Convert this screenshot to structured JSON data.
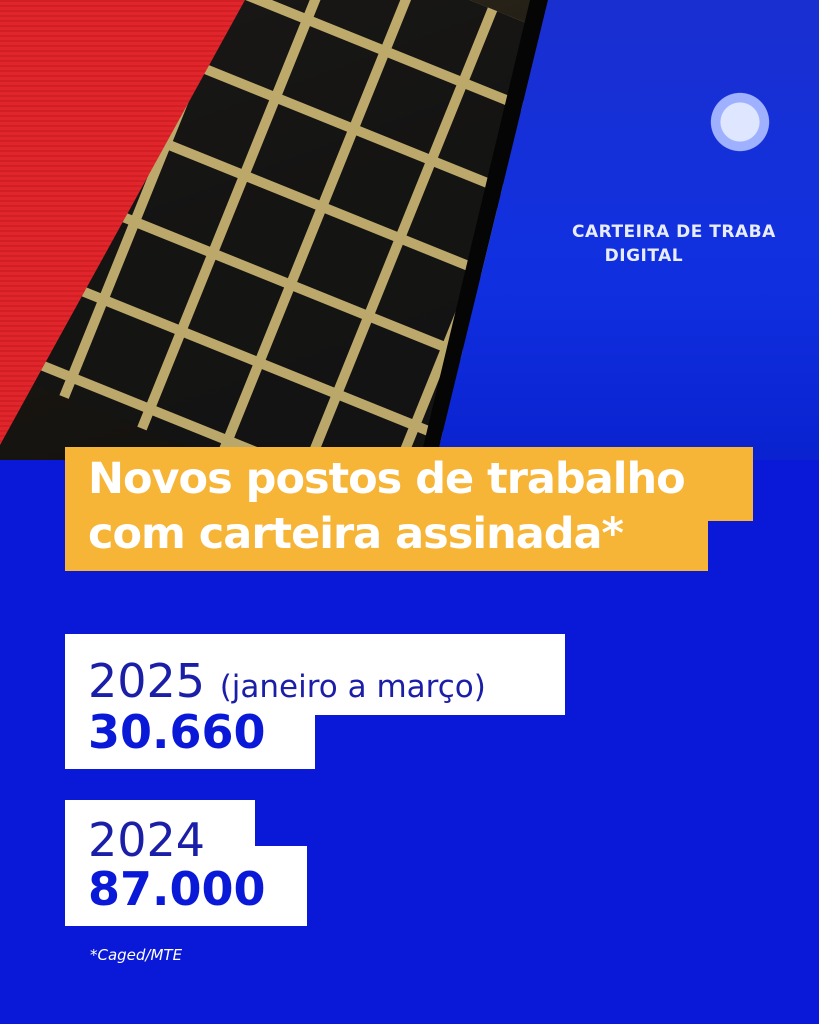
{
  "photo": {
    "phone_label_line1": "CARTEIRA DE TRABA",
    "phone_label_line2": "DIGITAL"
  },
  "headline": {
    "line1": "Novos postos de trabalho",
    "line2": "com carteira assinada*"
  },
  "stats": [
    {
      "year": "2025",
      "period": "(janeiro a março)",
      "value": "30.660"
    },
    {
      "year": "2024",
      "period": "",
      "value": "87.000"
    }
  ],
  "footnote": "*Caged/MTE",
  "colors": {
    "background": "#0a19d8",
    "highlight": "#f7b538",
    "red": "#e0252b",
    "text_dark_blue": "#1b1fa8"
  }
}
